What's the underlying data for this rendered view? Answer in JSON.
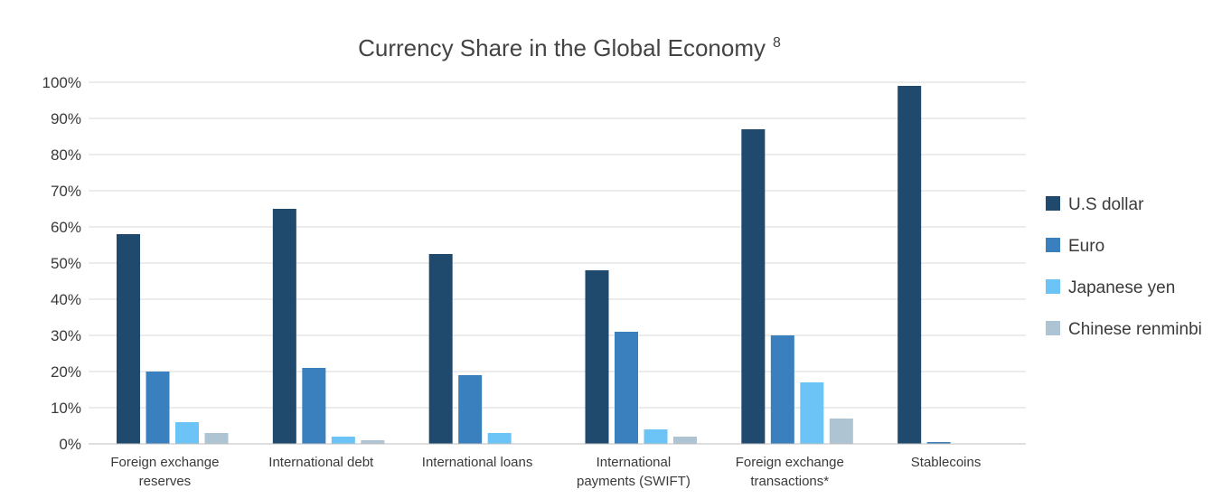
{
  "chart_data": {
    "type": "bar",
    "title": "Currency Share in the Global Economy",
    "title_superscript": "8",
    "xlabel": "",
    "ylabel": "",
    "ylim": [
      0,
      100
    ],
    "yticks": [
      0,
      10,
      20,
      30,
      40,
      50,
      60,
      70,
      80,
      90,
      100
    ],
    "ytick_labels": [
      "0%",
      "10%",
      "20%",
      "30%",
      "40%",
      "50%",
      "60%",
      "70%",
      "80%",
      "90%",
      "100%"
    ],
    "grid": true,
    "legend_position": "right",
    "categories": [
      [
        "Foreign exchange",
        "reserves"
      ],
      [
        "International debt"
      ],
      [
        "International loans"
      ],
      [
        "International",
        "payments (SWIFT)"
      ],
      [
        "Foreign exchange",
        "transactions*"
      ],
      [
        "Stablecoins"
      ]
    ],
    "series": [
      {
        "name": "U.S dollar",
        "color": "#1f4a6e",
        "values": [
          58,
          65,
          52.5,
          48,
          87,
          99
        ]
      },
      {
        "name": "Euro",
        "color": "#3a80bf",
        "values": [
          20,
          21,
          19,
          31,
          30,
          0.5
        ]
      },
      {
        "name": "Japanese yen",
        "color": "#6cc3f5",
        "values": [
          6,
          2,
          3,
          4,
          17,
          null
        ]
      },
      {
        "name": "Chinese renminbi",
        "color": "#aec4d3",
        "values": [
          3,
          1,
          null,
          2,
          7,
          null
        ]
      }
    ]
  }
}
